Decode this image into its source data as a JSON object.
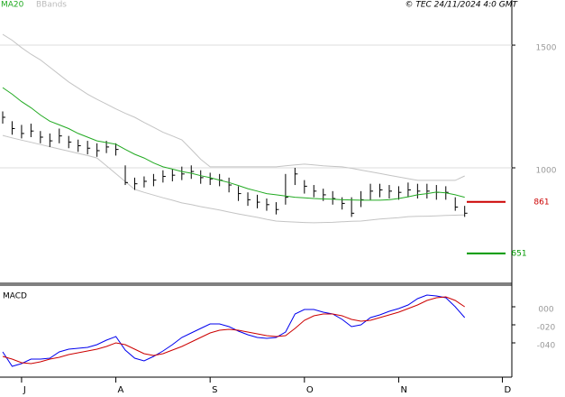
{
  "chart_data": [
    {
      "type": "ohlc",
      "categories": [
        null,
        null,
        "J",
        null,
        null,
        null,
        null,
        null,
        null,
        null,
        null,
        null,
        "A",
        null,
        null,
        null,
        null,
        null,
        null,
        null,
        null,
        null,
        "S",
        null,
        null,
        null,
        null,
        null,
        null,
        null,
        null,
        null,
        "O",
        null,
        null,
        null,
        null,
        null,
        null,
        null,
        null,
        null,
        "N",
        null,
        null,
        null,
        null,
        null,
        null,
        null,
        null,
        null,
        null,
        "D"
      ],
      "high": [
        1230,
        1190,
        1175,
        1180,
        1150,
        1140,
        1160,
        1130,
        1115,
        1110,
        1100,
        1110,
        1100,
        1010,
        960,
        965,
        975,
        990,
        995,
        1005,
        1010,
        990,
        980,
        975,
        960,
        925,
        900,
        890,
        875,
        860,
        975,
        1000,
        950,
        930,
        915,
        905,
        880,
        880,
        905,
        935,
        935,
        930,
        925,
        940,
        935,
        935,
        930,
        925,
        880,
        845,
        null,
        null,
        null,
        null
      ],
      "low": [
        1180,
        1135,
        1120,
        1125,
        1100,
        1085,
        1100,
        1080,
        1065,
        1055,
        1045,
        1060,
        1050,
        930,
        910,
        920,
        925,
        940,
        945,
        950,
        955,
        935,
        930,
        925,
        900,
        865,
        845,
        835,
        825,
        810,
        850,
        930,
        895,
        880,
        865,
        850,
        830,
        800,
        840,
        870,
        880,
        875,
        870,
        880,
        875,
        875,
        870,
        870,
        825,
        800,
        null,
        null,
        null,
        null
      ],
      "close": [
        1206,
        1160,
        1140,
        1150,
        1125,
        1110,
        1130,
        1105,
        1090,
        1080,
        1070,
        1085,
        1075,
        940,
        935,
        945,
        950,
        965,
        970,
        975,
        985,
        960,
        955,
        950,
        930,
        895,
        870,
        860,
        850,
        830,
        880,
        975,
        925,
        905,
        890,
        875,
        855,
        815,
        870,
        905,
        910,
        905,
        900,
        910,
        905,
        905,
        900,
        900,
        840,
        815,
        null,
        null,
        null,
        null
      ],
      "series": [
        {
          "name": "MA20",
          "color": "#22aa22",
          "values": [
            1327,
            1300,
            1270,
            1245,
            1215,
            1190,
            1175,
            1160,
            1140,
            1125,
            1110,
            1103,
            1096,
            1075,
            1055,
            1040,
            1020,
            1004,
            995,
            985,
            978,
            968,
            960,
            950,
            940,
            928,
            915,
            905,
            895,
            890,
            885,
            880,
            878,
            875,
            873,
            872,
            870,
            869,
            868,
            868,
            868,
            870,
            875,
            882,
            890,
            895,
            901,
            898,
            890,
            880,
            null,
            null,
            null,
            null
          ]
        }
      ],
      "bands": {
        "name": "BBands",
        "color": "#c4c4c4",
        "upper": [
          1544,
          1520,
          1490,
          1463,
          1440,
          1410,
          1380,
          1350,
          1325,
          1300,
          1279,
          1260,
          1240,
          1222,
          1206,
          1185,
          1165,
          1145,
          1130,
          1114,
          1075,
          1035,
          1004,
          1004,
          1004,
          1004,
          1004,
          1004,
          1004,
          1004,
          1008,
          1012,
          1015,
          1012,
          1008,
          1006,
          1004,
          998,
          991,
          984,
          977,
          970,
          963,
          956,
          949,
          949,
          949,
          949,
          949,
          967,
          null,
          null,
          null,
          null
        ],
        "lower": [
          1132,
          1122,
          1113,
          1104,
          1095,
          1086,
          1077,
          1068,
          1059,
          1050,
          1040,
          1008,
          976,
          944,
          912,
          900,
          889,
          878,
          868,
          857,
          850,
          842,
          835,
          828,
          820,
          812,
          805,
          798,
          790,
          783,
          781,
          779,
          777,
          776,
          777,
          778,
          780,
          782,
          783,
          787,
          791,
          794,
          797,
          801,
          802,
          803,
          804,
          806,
          807,
          808,
          null,
          null,
          null,
          null
        ]
      },
      "levels": [
        {
          "value": 861,
          "color": "#cc0000"
        },
        {
          "value": 651,
          "color": "#009900"
        }
      ],
      "ylim": [
        533,
        1684
      ],
      "yticks": [
        1000,
        1500
      ],
      "grid": true,
      "copyright": "© TEC 24/11/2024 4:0 GMT"
    },
    {
      "type": "line",
      "title": "MACD",
      "series": [
        {
          "color": "#0000ee",
          "values": [
            -50,
            -66,
            -63,
            -58,
            -58,
            -57,
            -50,
            -47,
            -46,
            -45,
            -42,
            -37,
            -33,
            -48,
            -57,
            -60,
            -55,
            -49,
            -42,
            -34,
            -29,
            -24,
            -19,
            -19,
            -22,
            -27,
            -31,
            -34,
            -35,
            -34,
            -28,
            -8,
            -3,
            -3,
            -6,
            -8,
            -14,
            -22,
            -20,
            -12,
            -9,
            -5,
            -2,
            2,
            9,
            13,
            12,
            10,
            0,
            -12,
            null,
            null,
            null,
            null
          ]
        },
        {
          "color": "#cc0000",
          "values": [
            -55,
            -58,
            -62,
            -63,
            -61,
            -58,
            -56,
            -53,
            -51,
            -49,
            -47,
            -44,
            -40,
            -42,
            -47,
            -52,
            -54,
            -52,
            -48,
            -44,
            -39,
            -34,
            -29,
            -26,
            -25,
            -26,
            -28,
            -30,
            -32,
            -33,
            -32,
            -24,
            -15,
            -10,
            -8,
            -8,
            -10,
            -14,
            -16,
            -15,
            -12,
            -9,
            -6,
            -2,
            2,
            7,
            10,
            11,
            7,
            0,
            null,
            null,
            null,
            null
          ]
        }
      ],
      "ylim": [
        -78,
        23
      ],
      "yticks": [
        {
          "value": 0,
          "label": "000"
        },
        {
          "value": -20,
          "label": "-020"
        },
        {
          "value": -40,
          "label": "-040"
        }
      ]
    }
  ]
}
